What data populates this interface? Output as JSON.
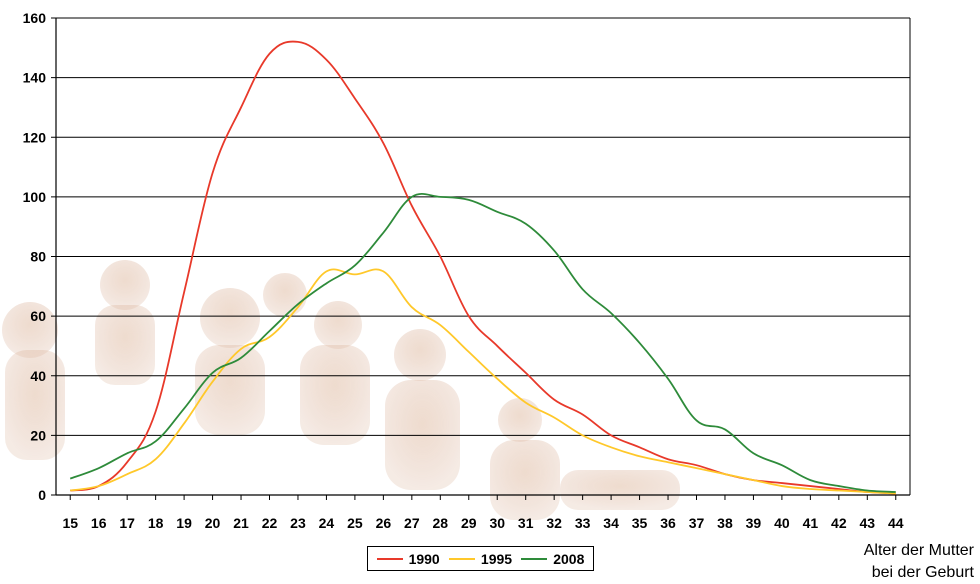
{
  "chart_data": {
    "type": "line",
    "x": [
      15,
      16,
      17,
      18,
      19,
      20,
      21,
      22,
      23,
      24,
      25,
      26,
      27,
      28,
      29,
      30,
      31,
      32,
      33,
      34,
      35,
      36,
      37,
      38,
      39,
      40,
      41,
      42,
      43,
      44
    ],
    "ylim": [
      0,
      160
    ],
    "yticks": [
      0,
      20,
      40,
      60,
      80,
      100,
      120,
      140,
      160
    ],
    "xlabel": [
      "Alter der Mutter",
      "bei der Geburt"
    ],
    "grid": true,
    "legend_position": "bottom",
    "series": [
      {
        "name": "1990",
        "color": "#e8392a",
        "values": [
          1.5,
          3,
          11,
          28,
          68,
          108,
          130,
          148,
          152,
          146,
          133,
          118,
          97,
          80,
          60,
          50,
          41,
          32,
          27,
          20,
          16,
          12,
          10,
          7,
          5,
          4,
          3,
          2,
          1,
          0.5
        ]
      },
      {
        "name": "1995",
        "color": "#ffc82a",
        "values": [
          1.5,
          3,
          7,
          12,
          24,
          38,
          49,
          53,
          63,
          75,
          74,
          75,
          63,
          57,
          48,
          39,
          31,
          26,
          20,
          16,
          13,
          11,
          9,
          7,
          5,
          3,
          2,
          1.5,
          1,
          0.5
        ]
      },
      {
        "name": "2008",
        "color": "#2e8b3a",
        "values": [
          5.5,
          9,
          14,
          18,
          29,
          41,
          46,
          55,
          64,
          71,
          77,
          88,
          100,
          100,
          99,
          95,
          91,
          82,
          69,
          61,
          51,
          39,
          25,
          22,
          14,
          10,
          5,
          3,
          1.5,
          1
        ]
      }
    ]
  }
}
